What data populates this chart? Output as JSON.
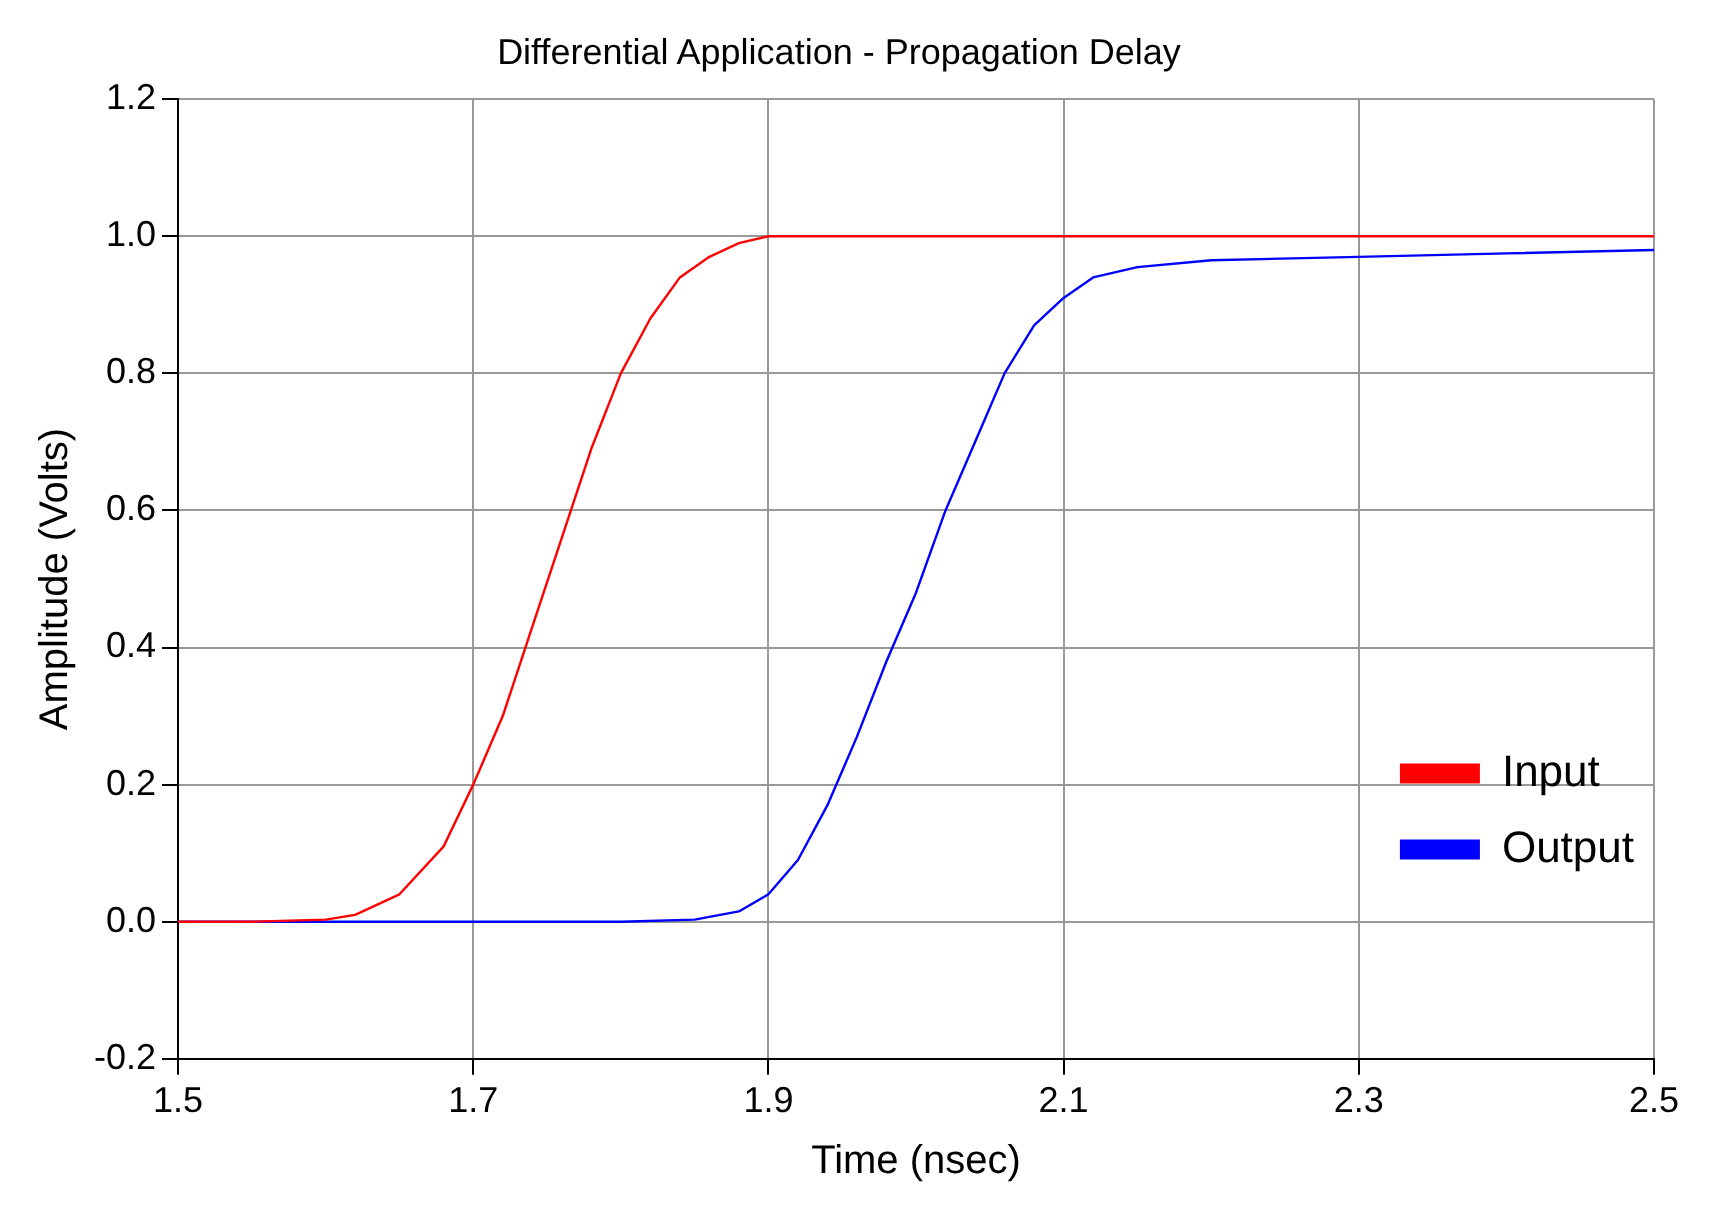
{
  "chart_data": {
    "type": "line",
    "title": "Differential Application - Propagation Delay",
    "xlabel": "Time (nsec)",
    "ylabel": "Amplitude (Volts)",
    "xlim": [
      1.5,
      2.5
    ],
    "xticks": [
      1.5,
      1.7,
      1.9,
      2.1,
      2.3,
      2.5
    ],
    "ylim": [
      -0.2,
      1.2
    ],
    "yticks": [
      -0.2,
      {
        "value": 0,
        "label": "0.0"
      },
      0.2,
      0.4,
      0.6,
      0.8,
      {
        "value": 1,
        "label": "1.0"
      },
      1.2
    ],
    "grid": true,
    "legend": "bottom right",
    "marker": "none",
    "line_style": "solid",
    "series": [
      {
        "name": "Input",
        "color": "#ff0000",
        "x": [
          1.5,
          1.55,
          1.6,
          1.62,
          1.65,
          1.68,
          1.7,
          1.72,
          1.74,
          1.76,
          1.78,
          1.8,
          1.82,
          1.84,
          1.86,
          1.88,
          1.9,
          2.0,
          2.5
        ],
        "values": [
          0,
          0,
          0.003,
          0.01,
          0.04,
          0.11,
          0.2,
          0.3,
          0.43,
          0.56,
          0.69,
          0.8,
          0.88,
          0.94,
          0.97,
          0.99,
          1.0,
          1.0,
          1.0
        ]
      },
      {
        "name": "Output",
        "color": "#0000ff",
        "x": [
          1.5,
          1.8,
          1.85,
          1.88,
          1.9,
          1.92,
          1.94,
          1.96,
          1.98,
          2.0,
          2.02,
          2.04,
          2.06,
          2.08,
          2.1,
          2.12,
          2.15,
          2.2,
          2.3,
          2.4,
          2.5
        ],
        "values": [
          0,
          0,
          0.003,
          0.015,
          0.04,
          0.09,
          0.17,
          0.27,
          0.38,
          0.48,
          0.6,
          0.7,
          0.8,
          0.87,
          0.91,
          0.94,
          0.955,
          0.965,
          0.97,
          0.975,
          0.98
        ]
      }
    ]
  }
}
